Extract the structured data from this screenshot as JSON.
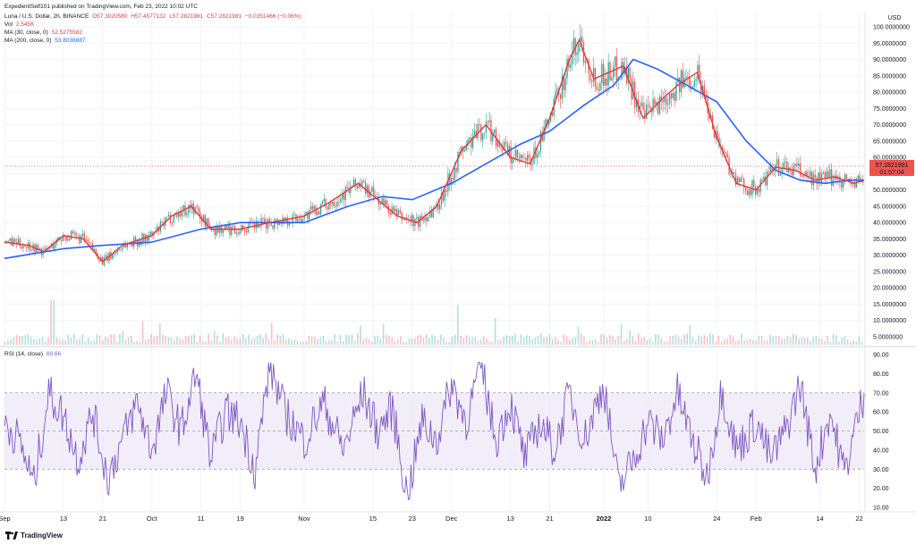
{
  "publisher_line": "ExpedientSelf101 published on TradingView.com, Feb 23, 2022 10:02 UTC",
  "symbol_line": {
    "symbol": "Luna / U.S. Dollar, 2h, BINANCE",
    "o": "O57.3020580",
    "h": "H57.4577132",
    "l": "L57.2821981",
    "c": "C57.2821981",
    "chg": "−0.0351466 (−0.06%)"
  },
  "vol_line": {
    "label": "Vol",
    "value": "2.545K"
  },
  "ma30_line": {
    "label": "MA (30, close, 0)",
    "value": "52.5275582"
  },
  "ma200_line": {
    "label": "MA (200, close, 0)",
    "value": "53.8036887"
  },
  "rsi_line": {
    "label": "RSI (14, close)",
    "value": "69.66"
  },
  "price_tag": {
    "price": "57.2821981",
    "countdown": "01:57:04"
  },
  "currency": "USD",
  "footer": "TradingView",
  "colors": {
    "up": "#26a69a",
    "down": "#ef5350",
    "ma30": "#e0393e",
    "ma200": "#2962ff",
    "rsi": "#7e57c2",
    "rsi_band": "#ede7f6"
  },
  "chart_data": [
    {
      "type": "line",
      "subtype": "candlestick",
      "title": "Luna / U.S. Dollar, 2h, BINANCE",
      "ylabel": "USD",
      "ylim": [
        5,
        100
      ],
      "yticks": [
        5,
        10,
        15,
        20,
        25,
        30,
        35,
        40,
        45,
        50,
        55,
        60,
        65,
        70,
        75,
        80,
        85,
        90,
        95,
        100
      ],
      "ytick_labels": [
        "5.0000000",
        "10.0000000",
        "15.0000000",
        "20.0000000",
        "25.0000000",
        "30.0000000",
        "35.0000000",
        "40.0000000",
        "45.0000000",
        "50.0000000",
        "55.0000000",
        "60.0000000",
        "65.0000000",
        "70.0000000",
        "75.0000000",
        "80.0000000",
        "85.0000000",
        "90.0000000",
        "95.0000000",
        "100.0000000"
      ],
      "xticks": [
        "Sep",
        "13",
        "21",
        "Oct",
        "11",
        "19",
        "Nov",
        "15",
        "23",
        "Dec",
        "13",
        "21",
        "2022",
        "10",
        "24",
        "Feb",
        "14",
        "22"
      ],
      "x_dates": [
        "2021-09-01",
        "2021-09-13",
        "2021-09-21",
        "2021-10-01",
        "2021-10-11",
        "2021-10-19",
        "2021-11-01",
        "2021-11-15",
        "2021-11-23",
        "2021-12-01",
        "2021-12-13",
        "2021-12-21",
        "2022-01-01",
        "2022-01-10",
        "2022-01-24",
        "2022-02-01",
        "2022-02-14",
        "2022-02-22"
      ],
      "series": [
        {
          "name": "MA (30, close, 0)",
          "x": [
            "2021-09-01",
            "2021-09-06",
            "2021-09-09",
            "2021-09-13",
            "2021-09-17",
            "2021-09-21",
            "2021-09-25",
            "2021-10-01",
            "2021-10-05",
            "2021-10-09",
            "2021-10-13",
            "2021-10-19",
            "2021-10-25",
            "2021-11-01",
            "2021-11-06",
            "2021-11-12",
            "2021-11-16",
            "2021-11-20",
            "2021-11-24",
            "2021-11-28",
            "2021-12-03",
            "2021-12-08",
            "2021-12-13",
            "2021-12-17",
            "2021-12-21",
            "2021-12-25",
            "2021-12-27",
            "2021-12-30",
            "2022-01-02",
            "2022-01-05",
            "2022-01-09",
            "2022-01-13",
            "2022-01-16",
            "2022-01-20",
            "2022-01-24",
            "2022-01-28",
            "2022-02-01",
            "2022-02-05",
            "2022-02-09",
            "2022-02-13",
            "2022-02-17",
            "2022-02-21",
            "2022-02-23"
          ],
          "y": [
            34,
            33,
            31,
            36,
            35,
            28,
            33,
            36,
            42,
            45,
            38,
            38,
            40,
            42,
            46,
            52,
            47,
            42,
            40,
            45,
            62,
            70,
            60,
            58,
            72,
            90,
            96,
            84,
            86,
            88,
            72,
            78,
            82,
            86,
            66,
            52,
            50,
            57,
            56,
            53,
            54,
            52,
            53
          ]
        },
        {
          "name": "MA (200, close, 0)",
          "x": [
            "2021-09-01",
            "2021-09-13",
            "2021-09-21",
            "2021-10-01",
            "2021-10-11",
            "2021-10-19",
            "2021-11-01",
            "2021-11-10",
            "2021-11-17",
            "2021-11-23",
            "2021-12-01",
            "2021-12-08",
            "2021-12-15",
            "2021-12-21",
            "2021-12-28",
            "2022-01-03",
            "2022-01-07",
            "2022-01-12",
            "2022-01-18",
            "2022-01-24",
            "2022-01-30",
            "2022-02-05",
            "2022-02-10",
            "2022-02-15",
            "2022-02-20",
            "2022-02-23"
          ],
          "y": [
            29,
            32,
            33,
            34,
            38,
            40,
            40,
            45,
            48,
            47,
            52,
            58,
            64,
            68,
            76,
            82,
            90,
            87,
            82,
            77,
            65,
            56,
            53,
            52,
            53,
            53
          ]
        }
      ],
      "last_price": 57.2821981
    },
    {
      "type": "line",
      "title": "RSI (14, close)",
      "ylim": [
        5,
        95
      ],
      "yticks": [
        10,
        20,
        30,
        40,
        50,
        60,
        70,
        80,
        90
      ],
      "ytick_labels": [
        "10.00",
        "20.00",
        "30.00",
        "40.00",
        "50.00",
        "60.00",
        "70.00",
        "80.00",
        "90.00"
      ],
      "band": [
        30,
        70
      ],
      "series": [
        {
          "name": "RSI (14, close)",
          "x": [
            "2021-09-01",
            "2021-09-04",
            "2021-09-07",
            "2021-09-10",
            "2021-09-13",
            "2021-09-16",
            "2021-09-19",
            "2021-09-22",
            "2021-09-25",
            "2021-09-28",
            "2021-10-01",
            "2021-10-04",
            "2021-10-07",
            "2021-10-10",
            "2021-10-13",
            "2021-10-16",
            "2021-10-19",
            "2021-10-22",
            "2021-10-25",
            "2021-10-28",
            "2021-11-01",
            "2021-11-05",
            "2021-11-09",
            "2021-11-13",
            "2021-11-16",
            "2021-11-19",
            "2021-11-22",
            "2021-11-25",
            "2021-11-28",
            "2021-12-01",
            "2021-12-04",
            "2021-12-07",
            "2021-12-10",
            "2021-12-13",
            "2021-12-16",
            "2021-12-19",
            "2021-12-22",
            "2021-12-25",
            "2021-12-28",
            "2022-01-01",
            "2022-01-04",
            "2022-01-07",
            "2022-01-10",
            "2022-01-13",
            "2022-01-16",
            "2022-01-19",
            "2022-01-22",
            "2022-01-25",
            "2022-01-28",
            "2022-02-01",
            "2022-02-04",
            "2022-02-07",
            "2022-02-10",
            "2022-02-13",
            "2022-02-16",
            "2022-02-19",
            "2022-02-22",
            "2022-02-23"
          ],
          "y": [
            55,
            45,
            22,
            70,
            58,
            35,
            60,
            25,
            45,
            65,
            40,
            70,
            50,
            80,
            35,
            60,
            55,
            30,
            85,
            60,
            45,
            65,
            40,
            70,
            50,
            62,
            15,
            55,
            45,
            75,
            55,
            85,
            45,
            65,
            35,
            55,
            40,
            70,
            45,
            75,
            20,
            35,
            55,
            45,
            70,
            45,
            25,
            72,
            40,
            55,
            35,
            50,
            75,
            30,
            60,
            28,
            60,
            69.66
          ]
        }
      ]
    }
  ]
}
